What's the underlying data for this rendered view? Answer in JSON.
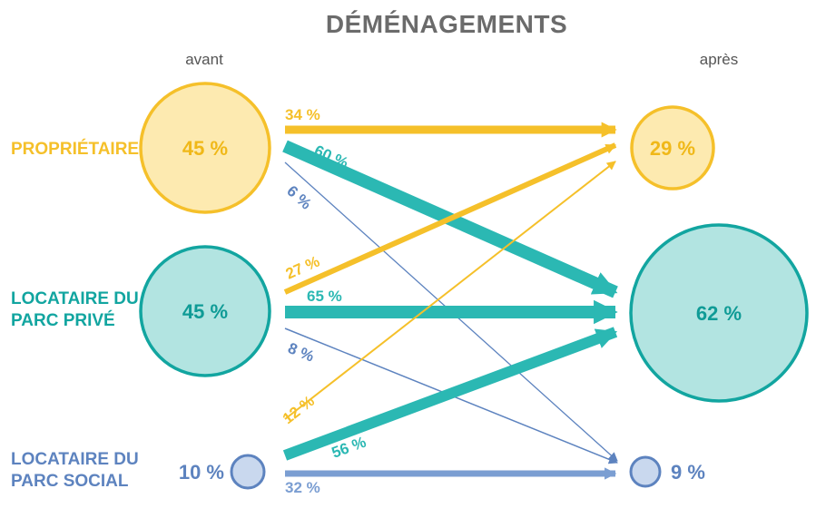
{
  "title": "DÉMÉNAGEMENTS",
  "columns": {
    "before": "avant",
    "after": "après"
  },
  "categories": [
    {
      "id": "proprietaire",
      "label_lines": [
        "PROPRIÉTAIRE"
      ],
      "color": "#f5c02a",
      "fill": "#fdeab0",
      "before_value": "45 %",
      "after_value": "29 %"
    },
    {
      "id": "prive",
      "label_lines": [
        "LOCATAIRE DU",
        "PARC PRIVÉ"
      ],
      "color": "#12a5a0",
      "fill": "#b2e4e1",
      "before_value": "45 %",
      "after_value": "62 %"
    },
    {
      "id": "social",
      "label_lines": [
        "LOCATAIRE DU",
        "PARC SOCIAL"
      ],
      "color": "#5d83bf",
      "fill": "#c9d8ee",
      "before_value": "10 %",
      "after_value": "9 %"
    }
  ],
  "flows": [
    {
      "from": "proprietaire",
      "to": "proprietaire",
      "label": "34 %",
      "color": "#f5c02a"
    },
    {
      "from": "proprietaire",
      "to": "prive",
      "label": "60 %",
      "color": "#2bb8b3"
    },
    {
      "from": "proprietaire",
      "to": "social",
      "label": "6 %",
      "color": "#5d83bf"
    },
    {
      "from": "prive",
      "to": "proprietaire",
      "label": "27 %",
      "color": "#f5c02a"
    },
    {
      "from": "prive",
      "to": "prive",
      "label": "65 %",
      "color": "#2bb8b3"
    },
    {
      "from": "prive",
      "to": "social",
      "label": "8 %",
      "color": "#5d83bf"
    },
    {
      "from": "social",
      "to": "proprietaire",
      "label": "12 %",
      "color": "#f5c02a"
    },
    {
      "from": "social",
      "to": "prive",
      "label": "56 %",
      "color": "#2bb8b3"
    },
    {
      "from": "social",
      "to": "social",
      "label": "32 %",
      "color": "#7b9ed2"
    }
  ]
}
